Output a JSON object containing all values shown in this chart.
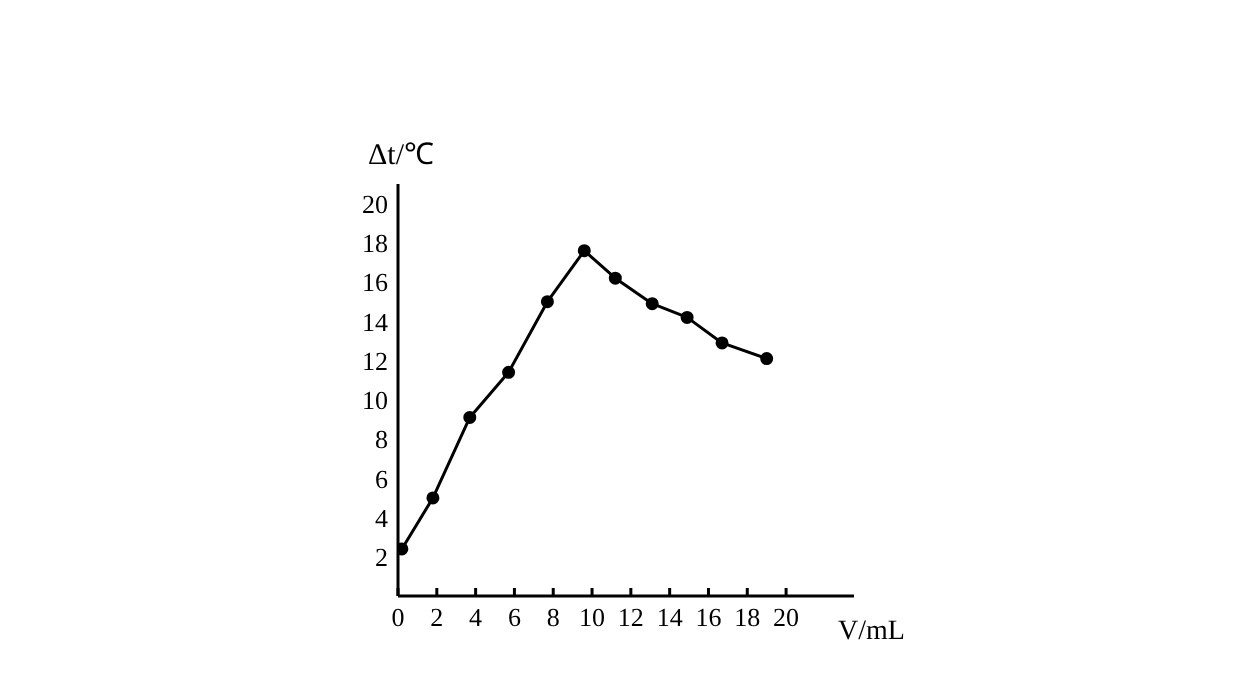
{
  "chart_data": {
    "type": "line",
    "xlabel": "V/mL",
    "ylabel": "Δt/℃",
    "x": [
      0.2,
      1.8,
      3.7,
      5.7,
      7.7,
      9.6,
      11.2,
      13.1,
      14.9,
      16.7,
      19.0
    ],
    "series": [
      {
        "color": "#000000",
        "values": [
          2.4,
          5.0,
          9.1,
          11.4,
          15.0,
          17.6,
          16.2,
          14.9,
          14.2,
          12.9,
          12.1
        ]
      }
    ],
    "xlim": [
      0,
      23.5
    ],
    "xticks": [
      0,
      2,
      4,
      6,
      8,
      10,
      12,
      14,
      16,
      18,
      20
    ],
    "ylim": [
      0,
      21
    ],
    "yticks": [
      2,
      4,
      6,
      8,
      10,
      12,
      14,
      16,
      18,
      20
    ],
    "marker": "circle",
    "line_style": "solid"
  }
}
